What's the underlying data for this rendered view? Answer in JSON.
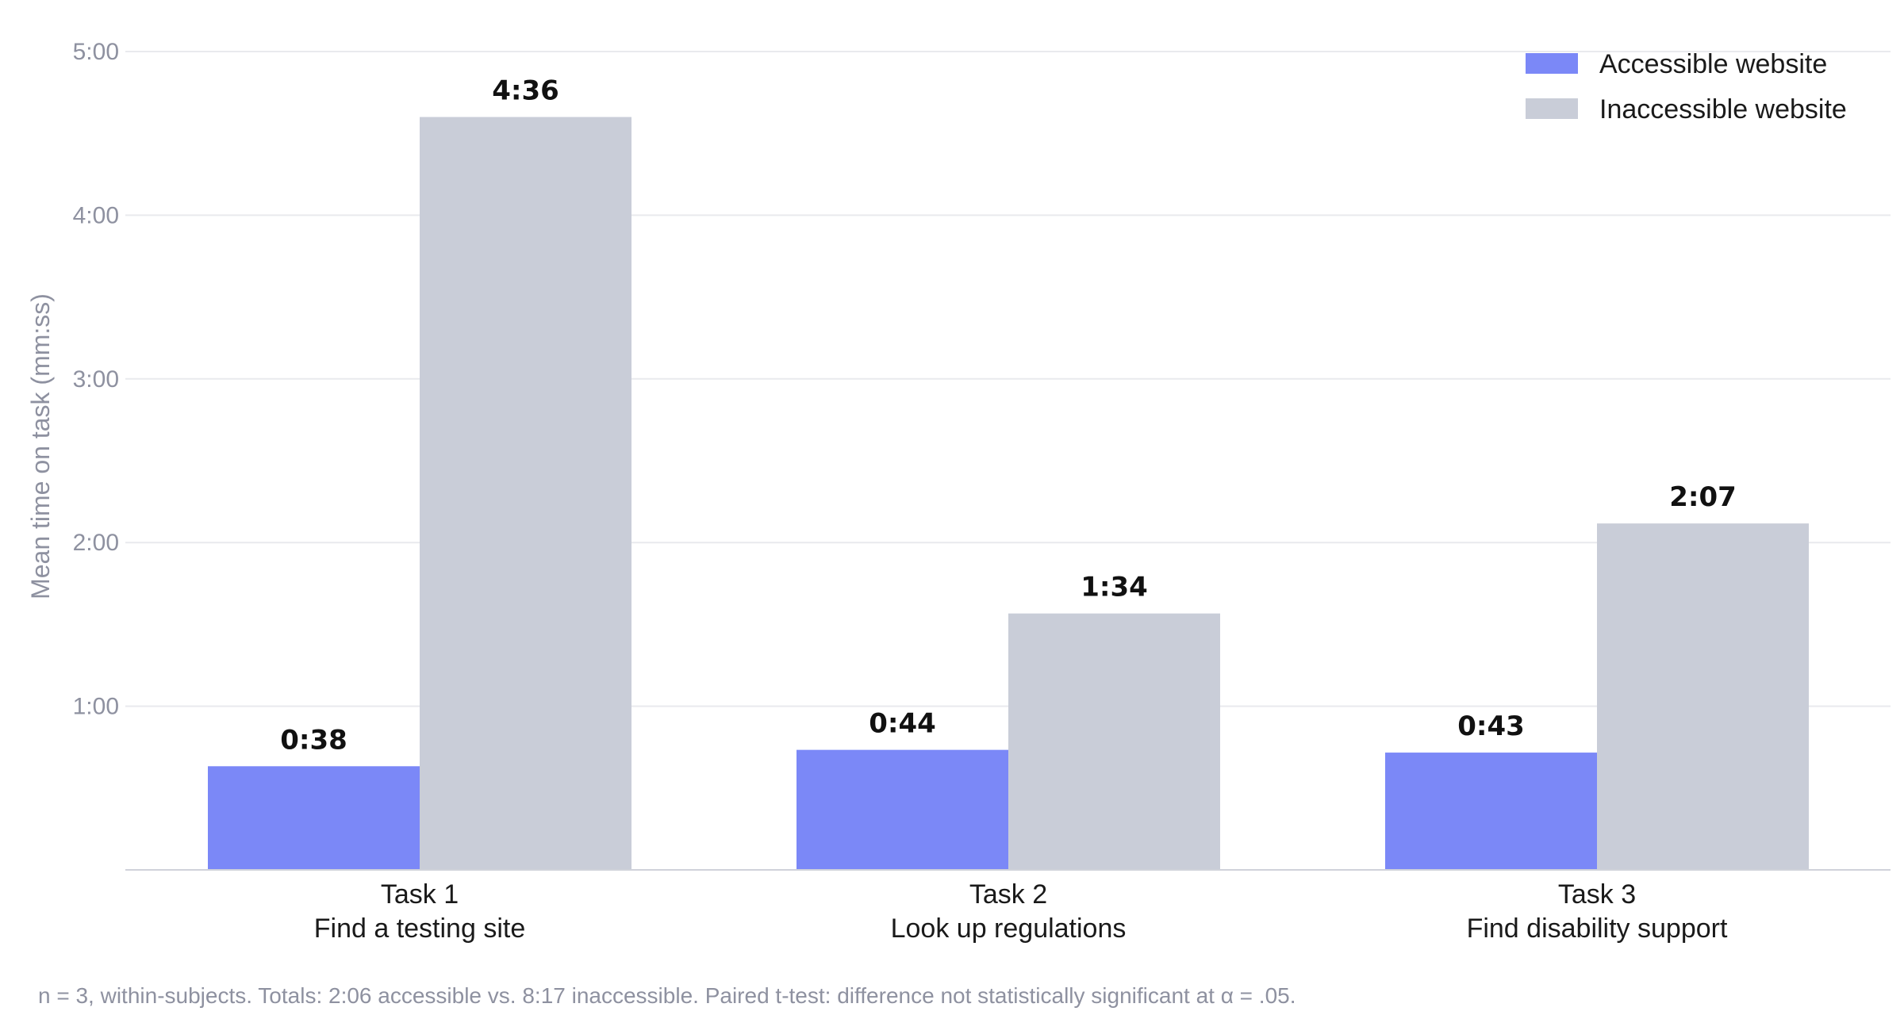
{
  "chart_data": {
    "type": "bar",
    "categories": [
      [
        "Task 1",
        "Find a testing site"
      ],
      [
        "Task 2",
        "Look up regulations"
      ],
      [
        "Task 3",
        "Find disability support"
      ]
    ],
    "series": [
      {
        "name": "Accessible website",
        "color": "#7b88f7",
        "values": [
          38,
          44,
          43
        ],
        "labels": [
          "0:38",
          "0:44",
          "0:43"
        ]
      },
      {
        "name": "Inaccessible website",
        "color": "#c9cdd8",
        "values": [
          276,
          94,
          127
        ],
        "labels": [
          "4:36",
          "1:34",
          "2:07"
        ]
      }
    ],
    "ylabel": "Mean time on task (mm:ss)",
    "xlabel": "",
    "ylim": [
      0,
      300
    ],
    "yticks": [
      60,
      120,
      180,
      240,
      300
    ],
    "ytick_labels": [
      "1:00",
      "2:00",
      "3:00",
      "4:00",
      "5:00"
    ],
    "grid": true,
    "legend_position": "top-right",
    "footnote": "n = 3, within-subjects. Totals: 2:06 accessible vs. 8:17 inaccessible. Paired t-test: difference not statistically significant at α = .05."
  }
}
